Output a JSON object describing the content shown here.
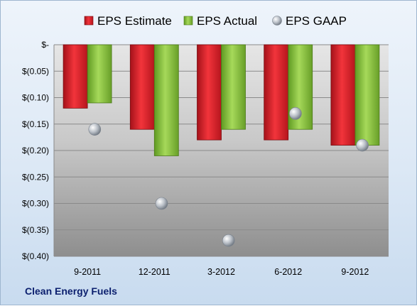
{
  "chart_data": {
    "type": "bar",
    "categories": [
      "9-2011",
      "12-2011",
      "3-2012",
      "6-2012",
      "9-2012"
    ],
    "series": [
      {
        "name": "EPS Estimate",
        "kind": "bar",
        "color": "#e31c23",
        "values": [
          -0.12,
          -0.16,
          -0.18,
          -0.18,
          -0.19
        ]
      },
      {
        "name": "EPS Actual",
        "kind": "bar",
        "color": "#8cc63f",
        "values": [
          -0.11,
          -0.21,
          -0.16,
          -0.16,
          -0.19
        ]
      },
      {
        "name": "EPS GAAP",
        "kind": "marker",
        "color": "#b8bec6",
        "values": [
          -0.16,
          -0.3,
          -0.37,
          -0.13,
          -0.19
        ]
      }
    ],
    "yticks": [
      "$-",
      "$(0.05)",
      "$(0.10)",
      "$(0.15)",
      "$(0.20)",
      "$(0.25)",
      "$(0.30)",
      "$(0.35)",
      "$(0.40)"
    ],
    "ylim": [
      -0.4,
      0
    ],
    "grid": true,
    "legend_position": "top"
  },
  "footer": {
    "company": "Clean Energy Fuels"
  }
}
